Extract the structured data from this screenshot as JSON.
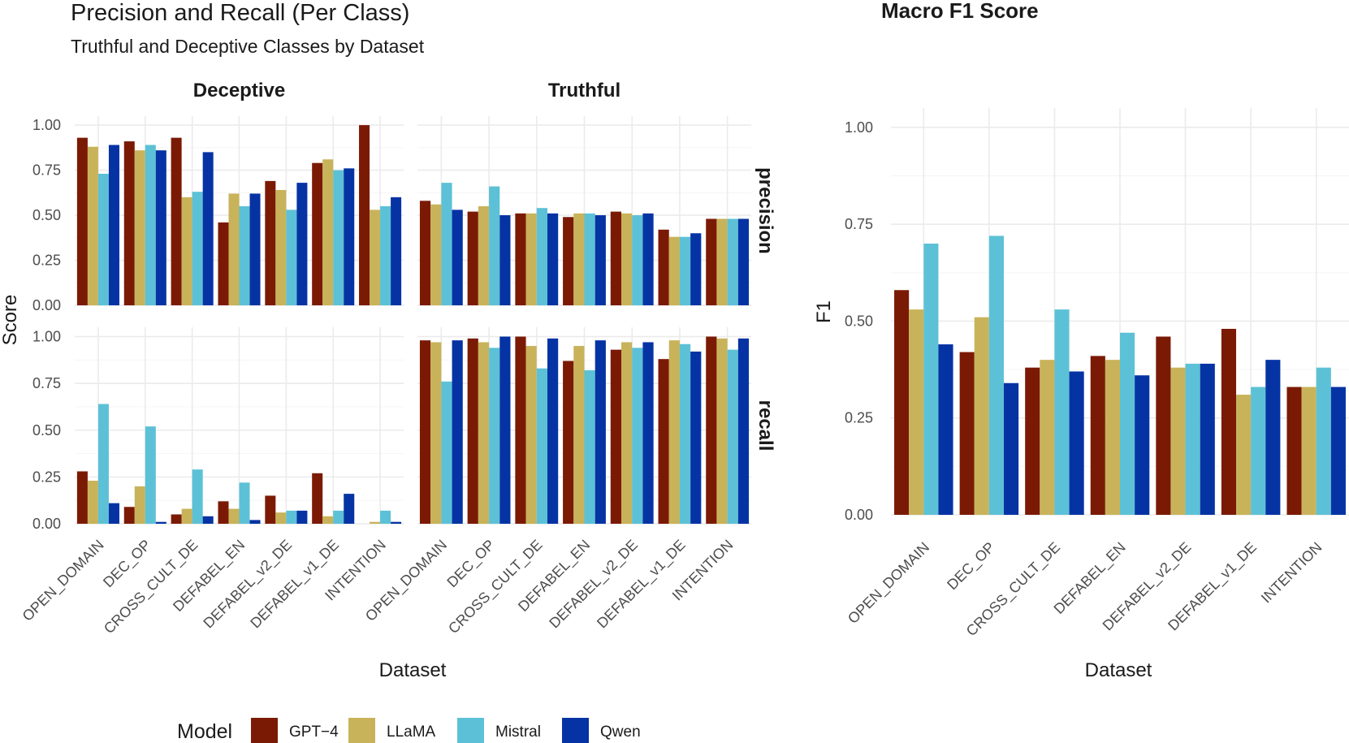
{
  "left_panel": {
    "title": "Precision and Recall (Per Class)",
    "subtitle": "Truthful and Deceptive Classes by Dataset"
  },
  "right_panel": {
    "title": "Macro F1 Score"
  },
  "legend": {
    "title": "Model"
  },
  "colors": {
    "GPT-4": "#7B1A04",
    "LLaMA": "#C8B35A",
    "Mistral": "#5CC1D6",
    "Qwen": "#0633A4"
  },
  "chart_data": [
    {
      "type": "bar",
      "title": "Precision and Recall (Per Class)",
      "subtitle": "Truthful and Deceptive Classes by Dataset",
      "xlabel": "Dataset",
      "ylabel": "Score",
      "ylim": [
        0,
        1.05
      ],
      "yticks": [
        "0.00",
        "0.25",
        "0.50",
        "0.75",
        "1.00"
      ],
      "categories": [
        "OPEN_DOMAIN",
        "DEC_OP",
        "CROSS_CULT_DE",
        "DEFABEL_EN",
        "DEFABEL_v2_DE",
        "DEFABEL_v1_DE",
        "INTENTION"
      ],
      "series_names": [
        "GPT−4",
        "LLaMA",
        "Mistral",
        "Qwen"
      ],
      "facet_columns": [
        "Deceptive",
        "Truthful"
      ],
      "facet_rows": [
        "precision",
        "recall"
      ],
      "facets": {
        "Deceptive": {
          "precision": [
            [
              0.93,
              0.88,
              0.73,
              0.89
            ],
            [
              0.91,
              0.86,
              0.89,
              0.86
            ],
            [
              0.93,
              0.6,
              0.63,
              0.85
            ],
            [
              0.46,
              0.62,
              0.55,
              0.62
            ],
            [
              0.69,
              0.64,
              0.53,
              0.68
            ],
            [
              0.79,
              0.81,
              0.75,
              0.76
            ],
            [
              1.0,
              0.53,
              0.55,
              0.6
            ]
          ],
          "recall": [
            [
              0.28,
              0.23,
              0.64,
              0.11
            ],
            [
              0.09,
              0.2,
              0.52,
              0.01
            ],
            [
              0.05,
              0.08,
              0.29,
              0.04
            ],
            [
              0.12,
              0.08,
              0.22,
              0.02
            ],
            [
              0.15,
              0.06,
              0.07,
              0.07
            ],
            [
              0.27,
              0.04,
              0.07,
              0.16
            ],
            [
              0.0,
              0.01,
              0.07,
              0.01
            ]
          ]
        },
        "Truthful": {
          "precision": [
            [
              0.58,
              0.56,
              0.68,
              0.53
            ],
            [
              0.52,
              0.55,
              0.66,
              0.5
            ],
            [
              0.51,
              0.51,
              0.54,
              0.51
            ],
            [
              0.49,
              0.51,
              0.51,
              0.5
            ],
            [
              0.52,
              0.51,
              0.5,
              0.51
            ],
            [
              0.42,
              0.38,
              0.38,
              0.4
            ],
            [
              0.48,
              0.48,
              0.48,
              0.48
            ]
          ],
          "recall": [
            [
              0.98,
              0.97,
              0.76,
              0.98
            ],
            [
              0.99,
              0.97,
              0.94,
              1.0
            ],
            [
              1.0,
              0.95,
              0.83,
              0.99
            ],
            [
              0.87,
              0.95,
              0.82,
              0.98
            ],
            [
              0.93,
              0.97,
              0.94,
              0.97
            ],
            [
              0.88,
              0.98,
              0.96,
              0.92
            ],
            [
              1.0,
              0.99,
              0.93,
              0.99
            ]
          ]
        }
      }
    },
    {
      "type": "bar",
      "title": "Macro F1 Score",
      "xlabel": "Dataset",
      "ylabel": "F1",
      "ylim": [
        0,
        1.05
      ],
      "yticks": [
        "0.00",
        "0.25",
        "0.50",
        "0.75",
        "1.00"
      ],
      "categories": [
        "OPEN_DOMAIN",
        "DEC_OP",
        "CROSS_CULT_DE",
        "DEFABEL_EN",
        "DEFABEL_v2_DE",
        "DEFABEL_v1_DE",
        "INTENTION"
      ],
      "series": [
        {
          "name": "GPT−4",
          "values": [
            0.58,
            0.42,
            0.38,
            0.41,
            0.46,
            0.48,
            0.33
          ]
        },
        {
          "name": "LLaMA",
          "values": [
            0.53,
            0.51,
            0.4,
            0.4,
            0.38,
            0.31,
            0.33
          ]
        },
        {
          "name": "Mistral",
          "values": [
            0.7,
            0.72,
            0.53,
            0.47,
            0.39,
            0.33,
            0.38
          ]
        },
        {
          "name": "Qwen",
          "values": [
            0.44,
            0.34,
            0.37,
            0.36,
            0.39,
            0.4,
            0.33
          ]
        }
      ]
    }
  ]
}
